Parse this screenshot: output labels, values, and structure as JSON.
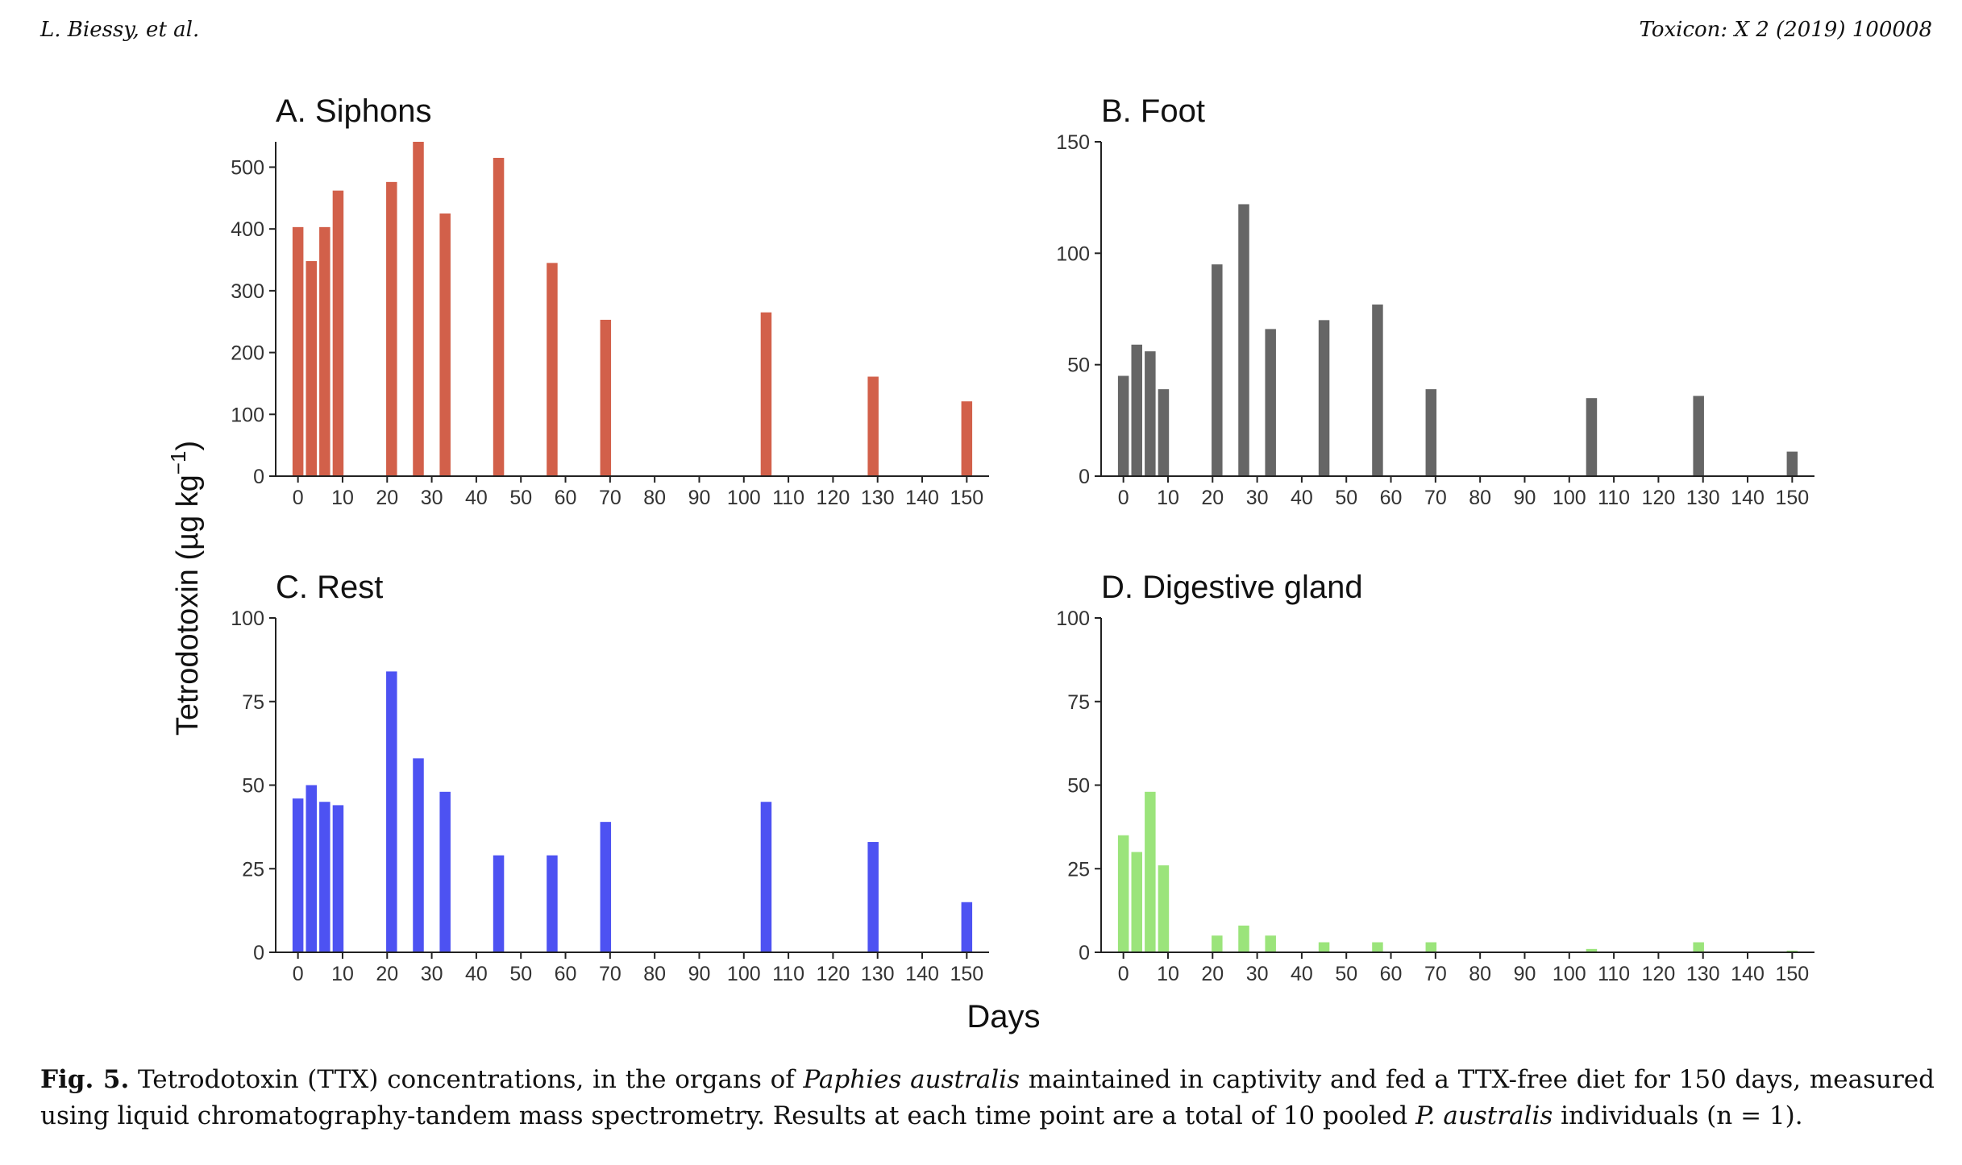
{
  "header": {
    "left": "L. Biessy, et al.",
    "right": "Toxicon: X 2 (2019) 100008"
  },
  "figure": {
    "y_label_main": "Tetrodotoxin (µg kg",
    "y_label_exp": "−1",
    "y_label_close": ")",
    "x_label": "Days"
  },
  "caption": {
    "fig_label": "Fig. 5.",
    "text_1": " Tetrodotoxin (TTX) concentrations, in the organs of ",
    "italic_1": "Paphies australis",
    "text_2": " maintained in captivity and fed a TTX-free diet for 150 days, measured using liquid chromatography-tandem mass spectrometry. Results at each time point are a total of 10 pooled ",
    "italic_2": "P. australis",
    "text_3": " individuals (n = 1)."
  },
  "chart_data": [
    {
      "type": "bar",
      "title": "A. Siphons",
      "color": "#d2604a",
      "x": [
        0,
        3,
        6,
        9,
        21,
        27,
        33,
        45,
        57,
        69,
        105,
        129,
        150
      ],
      "values": [
        403,
        348,
        403,
        462,
        476,
        541,
        425,
        515,
        345,
        253,
        265,
        161,
        121
      ],
      "xticks": [
        0,
        10,
        20,
        30,
        40,
        50,
        60,
        70,
        80,
        90,
        100,
        110,
        120,
        130,
        140,
        150
      ],
      "yticks": [
        0,
        100,
        200,
        300,
        400,
        500
      ],
      "xlim": [
        -5,
        155
      ],
      "ylim": [
        0,
        541
      ]
    },
    {
      "type": "bar",
      "title": "B. Foot",
      "color": "#666666",
      "x": [
        0,
        3,
        6,
        9,
        21,
        27,
        33,
        45,
        57,
        69,
        105,
        129,
        150
      ],
      "values": [
        45,
        59,
        56,
        39,
        95,
        122,
        66,
        70,
        77,
        39,
        35,
        36,
        11
      ],
      "xticks": [
        0,
        10,
        20,
        30,
        40,
        50,
        60,
        70,
        80,
        90,
        100,
        110,
        120,
        130,
        140,
        150
      ],
      "yticks": [
        0,
        50,
        100,
        150
      ],
      "xlim": [
        -5,
        155
      ],
      "ylim": [
        0,
        150
      ]
    },
    {
      "type": "bar",
      "title": "C. Rest",
      "color": "#4d52f2",
      "x": [
        0,
        3,
        6,
        9,
        21,
        27,
        33,
        45,
        57,
        69,
        105,
        129,
        150
      ],
      "values": [
        46,
        50,
        45,
        44,
        84,
        58,
        48,
        29,
        29,
        39,
        45,
        33,
        15
      ],
      "xticks": [
        0,
        10,
        20,
        30,
        40,
        50,
        60,
        70,
        80,
        90,
        100,
        110,
        120,
        130,
        140,
        150
      ],
      "yticks": [
        0,
        25,
        50,
        75,
        100
      ],
      "xlim": [
        -5,
        155
      ],
      "ylim": [
        0,
        100
      ]
    },
    {
      "type": "bar",
      "title": "D. Digestive gland",
      "color": "#9be47b",
      "x": [
        0,
        3,
        6,
        9,
        21,
        27,
        33,
        45,
        57,
        69,
        105,
        129,
        150
      ],
      "values": [
        35,
        30,
        48,
        26,
        5,
        8,
        5,
        3,
        3,
        3,
        1,
        3,
        0.5
      ],
      "xticks": [
        0,
        10,
        20,
        30,
        40,
        50,
        60,
        70,
        80,
        90,
        100,
        110,
        120,
        130,
        140,
        150
      ],
      "yticks": [
        0,
        25,
        50,
        75,
        100
      ],
      "xlim": [
        -5,
        155
      ],
      "ylim": [
        0,
        100
      ]
    }
  ]
}
